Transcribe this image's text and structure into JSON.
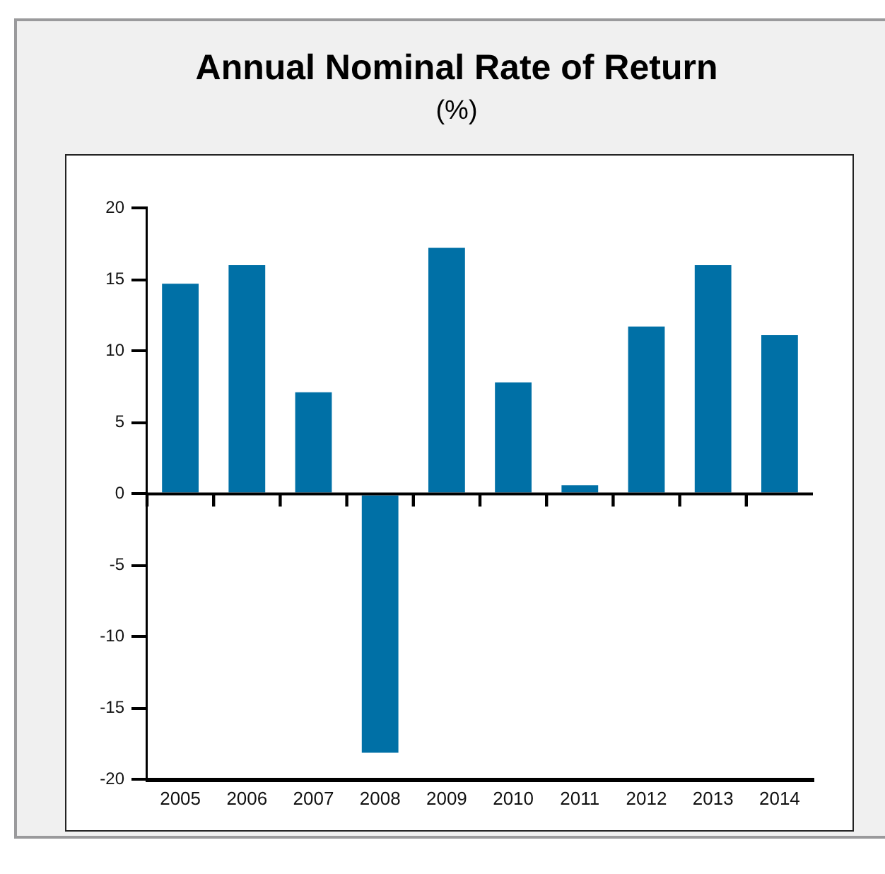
{
  "chart_data": {
    "type": "bar",
    "title": "Annual Nominal Rate of Return",
    "subtitle": "(%)",
    "categories": [
      "2005",
      "2006",
      "2007",
      "2008",
      "2009",
      "2010",
      "2011",
      "2012",
      "2013",
      "2014"
    ],
    "values": [
      14.7,
      16.0,
      7.1,
      -18.1,
      17.2,
      7.8,
      0.6,
      11.7,
      16.0,
      11.1
    ],
    "color": "#0070a6",
    "ylim": [
      -20,
      20
    ],
    "yticks": [
      -20,
      -15,
      -10,
      -5,
      0,
      5,
      10,
      15,
      20
    ]
  }
}
